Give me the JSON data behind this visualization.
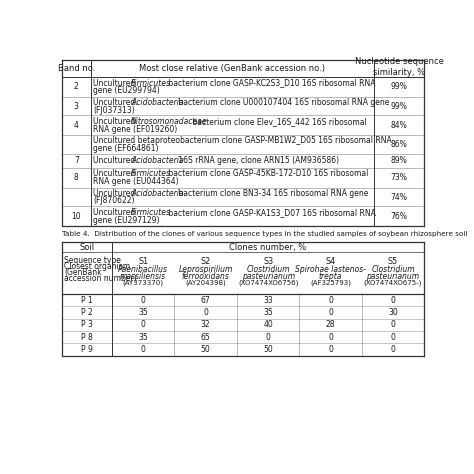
{
  "top_table": {
    "headers": [
      "Band no.",
      "Most close relative (GenBank accession no.)",
      "Nucleotide sequence\nsimilarity, %"
    ],
    "rows": [
      {
        "band": "2",
        "desc_parts": [
          [
            "Uncultured ",
            false
          ],
          [
            "Firmicutes",
            true
          ],
          [
            " bacterium clone GASP-KC2S3_D10 16S ribosomal RNA\ngene (EU299794)",
            false
          ]
        ],
        "sim": "99%"
      },
      {
        "band": "3",
        "desc_parts": [
          [
            "Uncultured ",
            false
          ],
          [
            "Acidobacteria",
            true
          ],
          [
            " bacterium clone U000107404 16S ribosomal RNA gene\n(FJ037313)",
            false
          ]
        ],
        "sim": "99%"
      },
      {
        "band": "4",
        "desc_parts": [
          [
            "Uncultured ",
            false
          ],
          [
            "Nitrosomonadaceae",
            true
          ],
          [
            " bacterium clone Elev_16S_442 16S ribosomal\nRNA gene (EF019260)",
            false
          ]
        ],
        "sim": "84%"
      },
      {
        "band": "",
        "desc_parts": [
          [
            "Uncultured betaproteobacterium clone GASP-MB1W2_D05 16S ribosomal RNA\ngene (EF664861)",
            false
          ]
        ],
        "sim": "86%"
      },
      {
        "band": "7",
        "desc_parts": [
          [
            "Uncultured ",
            false
          ],
          [
            "Acidobacteria",
            true
          ],
          [
            " 16S rRNA gene, clone ARN15 (AM936586)",
            false
          ]
        ],
        "sim": "89%"
      },
      {
        "band": "8",
        "desc_parts": [
          [
            "Uncultured ",
            false
          ],
          [
            "Firmicutes",
            true
          ],
          [
            " bacterium clone GASP-45KB-172-D10 16S ribosomal\nRNA gene (EU044364)",
            false
          ]
        ],
        "sim": "73%"
      },
      {
        "band": "",
        "desc_parts": [
          [
            "Uncultured ",
            false
          ],
          [
            "Acidobacteria",
            true
          ],
          [
            " bacterium clone BN3-34 16S ribosomal RNA gene\n(FJ870622)",
            false
          ]
        ],
        "sim": "74%"
      },
      {
        "band": "10",
        "desc_parts": [
          [
            "Uncultured ",
            false
          ],
          [
            "Firmicutes",
            true
          ],
          [
            " bacterium clone GASP-KA1S3_D07 16S ribosomal RNA\ngene (EU297129)",
            false
          ]
        ],
        "sim": "76%"
      }
    ]
  },
  "table4_title": "Table 4.  Distribution of the clones of various sequence types in the studied samples of soybean rhizosphere soil",
  "bottom_table": {
    "col1_label_lines": [
      "Sequence type",
      "Closest organism",
      "(GenBank",
      "accession number)"
    ],
    "columns": [
      {
        "code": "S1",
        "name_lines": [
          "Paenibacillus",
          "massiliensis"
        ],
        "accession": "(AY373370)"
      },
      {
        "code": "S2",
        "name_lines": [
          "Leprospirilium",
          "ferrooxidans"
        ],
        "accession": "(AY204398)"
      },
      {
        "code": "S3",
        "name_lines": [
          "Clostridium",
          "pasteurianum"
        ],
        "accession": "(XO7474XO6756)"
      },
      {
        "code": "S4",
        "name_lines": [
          "Spirohae lastenos-",
          "trepta"
        ],
        "accession": "(AF325793)"
      },
      {
        "code": "S5",
        "name_lines": [
          "Clostridium",
          "pasteurianum"
        ],
        "accession": "(XO7474XO675-)"
      }
    ],
    "rows": [
      {
        "seq": "P 1",
        "values": [
          "0",
          "67",
          "33",
          "0",
          "0"
        ]
      },
      {
        "seq": "P 2",
        "values": [
          "35",
          "0",
          "35",
          "0",
          "30"
        ]
      },
      {
        "seq": "P 3",
        "values": [
          "0",
          "32",
          "40",
          "28",
          "0"
        ]
      },
      {
        "seq": "P 8",
        "values": [
          "35",
          "65",
          "0",
          "0",
          "0"
        ]
      },
      {
        "seq": "P 9",
        "values": [
          "0",
          "50",
          "50",
          "0",
          "0"
        ]
      }
    ]
  },
  "bg_color": "#ffffff",
  "text_color": "#1a1a1a",
  "line_color": "#333333"
}
